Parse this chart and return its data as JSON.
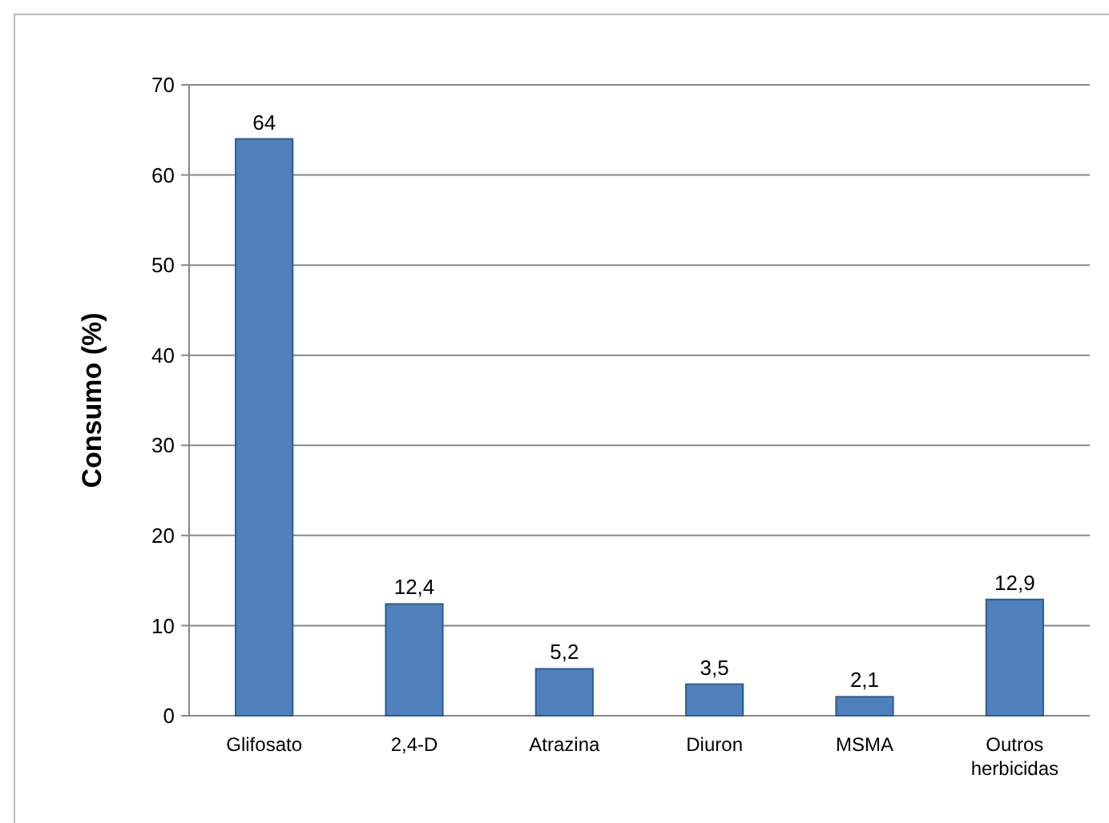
{
  "chart_data": {
    "type": "bar",
    "ylabel": "Consumo (%)",
    "categories": [
      "Glifosato",
      "2,4-D",
      "Atrazina",
      "Diuron",
      "MSMA",
      "Outros herbicidas"
    ],
    "values": [
      64,
      12.4,
      5.2,
      3.5,
      2.1,
      12.9
    ],
    "value_labels": [
      "64",
      "12,4",
      "5,2",
      "3,5",
      "2,1",
      "12,9"
    ],
    "color": "#4f81bd",
    "ylim": [
      0,
      70
    ],
    "yticks": [
      0,
      10,
      20,
      30,
      40,
      50,
      60,
      70
    ],
    "grid": "y"
  }
}
